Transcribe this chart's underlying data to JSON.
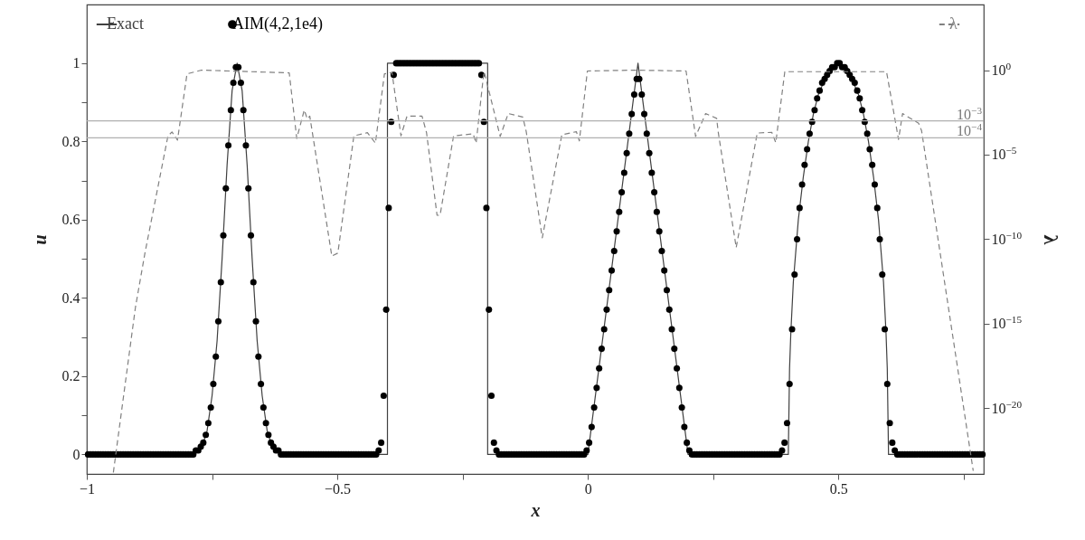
{
  "chart_data": {
    "type": "line",
    "xlabel": "x",
    "ylabel": "u",
    "y2label": "λ",
    "xlim": [
      -1,
      0.79
    ],
    "xticks": [
      {
        "value": -1,
        "label": "−1"
      },
      {
        "value": -0.75,
        "label": null
      },
      {
        "value": -0.5,
        "label": "−0.5"
      },
      {
        "value": -0.25,
        "label": null
      },
      0,
      {
        "value": 0.25,
        "label": null
      },
      0.5,
      {
        "value": 0.75,
        "label": null
      }
    ],
    "ylim": [
      -0.05,
      1.15
    ],
    "yticks": [
      0,
      {
        "value": 0.1,
        "label": null
      },
      0.2,
      {
        "value": 0.3,
        "label": null
      },
      0.4,
      {
        "value": 0.5,
        "label": null
      },
      0.6,
      {
        "value": 0.7,
        "label": null
      },
      0.8,
      {
        "value": 0.9,
        "label": null
      },
      1
    ],
    "y2lim": [
      1.3e-24,
      7600
    ],
    "y2ticks": [
      {
        "value": 1,
        "label": "10$^{0}$"
      },
      {
        "value": 1e-05,
        "label": "10$^{−5}$"
      },
      {
        "value": 1e-10,
        "label": "10$^{−10}$"
      },
      {
        "value": 1e-15,
        "label": "10$^{−15}$"
      },
      {
        "value": 1e-20,
        "label": "10$^{−20}$"
      }
    ],
    "log": "y2",
    "legend": "top",
    "ref_lines": [
      {
        "axis": "y2",
        "value": 0.001,
        "label": "10$^{−3}$",
        "color": "#b0b0b0"
      },
      {
        "axis": "y2",
        "value": 0.0001,
        "label": "10$^{−4}$",
        "color": "#b0b0b0"
      }
    ],
    "series": [
      {
        "name": "Exact",
        "color": "#404040",
        "line_style": "solid",
        "marker": "none",
        "x": [
          -1,
          -0.79,
          -0.78,
          -0.77,
          -0.76,
          -0.75,
          -0.74,
          -0.73,
          -0.72,
          -0.71,
          -0.7,
          -0.69,
          -0.68,
          -0.67,
          -0.66,
          -0.65,
          -0.64,
          -0.63,
          -0.62,
          -0.61,
          -0.4,
          -0.4,
          -0.2,
          -0.2,
          0,
          0.1,
          0.2,
          0.4,
          0.4025,
          0.405,
          0.41,
          0.42,
          0.43,
          0.44,
          0.45,
          0.46,
          0.47,
          0.48,
          0.49,
          0.5,
          0.51,
          0.52,
          0.53,
          0.54,
          0.55,
          0.56,
          0.57,
          0.58,
          0.59,
          0.595,
          0.5975,
          0.6,
          0.79
        ],
        "values": [
          0,
          0,
          0.01,
          0.02,
          0.06,
          0.15,
          0.29,
          0.5,
          0.74,
          0.93,
          1,
          0.93,
          0.74,
          0.5,
          0.29,
          0.15,
          0.06,
          0.02,
          0.01,
          0,
          0,
          1,
          1,
          0,
          0,
          1,
          0,
          0,
          0.22,
          0.31,
          0.44,
          0.6,
          0.71,
          0.8,
          0.87,
          0.92,
          0.95,
          0.98,
          0.99,
          1,
          0.99,
          0.98,
          0.95,
          0.92,
          0.87,
          0.8,
          0.71,
          0.6,
          0.44,
          0.31,
          0.22,
          0,
          0
        ]
      },
      {
        "name": "AIM(4,2,1e4)",
        "type": "scatter",
        "color": "#000000",
        "marker": "circle",
        "x": [
          -0.9975,
          -0.9925,
          -0.9875,
          -0.9825,
          -0.9775,
          -0.9725,
          -0.9675,
          -0.9625,
          -0.9575,
          -0.9525,
          -0.9475,
          -0.9425,
          -0.9375,
          -0.9325,
          -0.9275,
          -0.9225,
          -0.9175,
          -0.9125,
          -0.9075,
          -0.9025,
          -0.8975,
          -0.8925,
          -0.8875,
          -0.8825,
          -0.8775,
          -0.8725,
          -0.8675,
          -0.8625,
          -0.8575,
          -0.8525,
          -0.8475,
          -0.8425,
          -0.8375,
          -0.8325,
          -0.8275,
          -0.8225,
          -0.8175,
          -0.8125,
          -0.8075,
          -0.8025,
          -0.7975,
          -0.7925,
          -0.7875,
          -0.7825,
          -0.7775,
          -0.7725,
          -0.7675,
          -0.7625,
          -0.7575,
          -0.7525,
          -0.7475,
          -0.7425,
          -0.7375,
          -0.7325,
          -0.7275,
          -0.7225,
          -0.7175,
          -0.7125,
          -0.7075,
          -0.7025,
          -0.6975,
          -0.6925,
          -0.6875,
          -0.6825,
          -0.6775,
          -0.6725,
          -0.6675,
          -0.6625,
          -0.6575,
          -0.6525,
          -0.6475,
          -0.6425,
          -0.6375,
          -0.6325,
          -0.6275,
          -0.6225,
          -0.6175,
          -0.6125,
          -0.6075,
          -0.6025,
          -0.5975,
          -0.5925,
          -0.5875,
          -0.5825,
          -0.5775,
          -0.5725,
          -0.5675,
          -0.5625,
          -0.5575,
          -0.5525,
          -0.5475,
          -0.5425,
          -0.5375,
          -0.5325,
          -0.5275,
          -0.5225,
          -0.5175,
          -0.5125,
          -0.5075,
          -0.5025,
          -0.4975,
          -0.4925,
          -0.4875,
          -0.4825,
          -0.4775,
          -0.4725,
          -0.4675,
          -0.4625,
          -0.4575,
          -0.4525,
          -0.4475,
          -0.4425,
          -0.4375,
          -0.4325,
          -0.4275,
          -0.4225,
          -0.4175,
          -0.4125,
          -0.4075,
          -0.4025,
          -0.3975,
          -0.3925,
          -0.3875,
          -0.3825,
          -0.3775,
          -0.3725,
          -0.3675,
          -0.3625,
          -0.3575,
          -0.3525,
          -0.3475,
          -0.3425,
          -0.3375,
          -0.3325,
          -0.3275,
          -0.3225,
          -0.3175,
          -0.3125,
          -0.3075,
          -0.3025,
          -0.2975,
          -0.2925,
          -0.2875,
          -0.2825,
          -0.2775,
          -0.2725,
          -0.2675,
          -0.2625,
          -0.2575,
          -0.2525,
          -0.2475,
          -0.2425,
          -0.2375,
          -0.2325,
          -0.2275,
          -0.2225,
          -0.2175,
          -0.2125,
          -0.2075,
          -0.2025,
          -0.1975,
          -0.1925,
          -0.1875,
          -0.1825,
          -0.1775,
          -0.1725,
          -0.1675,
          -0.1625,
          -0.1575,
          -0.1525,
          -0.1475,
          -0.1425,
          -0.1375,
          -0.1325,
          -0.1275,
          -0.1225,
          -0.1175,
          -0.1125,
          -0.1075,
          -0.1025,
          -0.0975,
          -0.0925,
          -0.0875,
          -0.0825,
          -0.0775,
          -0.0725,
          -0.0675,
          -0.0625,
          -0.0575,
          -0.0525,
          -0.0475,
          -0.0425,
          -0.0375,
          -0.0325,
          -0.0275,
          -0.0225,
          -0.0175,
          -0.0125,
          -0.0075,
          -0.0025,
          0.0025,
          0.0075,
          0.0125,
          0.0175,
          0.0225,
          0.0275,
          0.0325,
          0.0375,
          0.0425,
          0.0475,
          0.0525,
          0.0575,
          0.0625,
          0.0675,
          0.0725,
          0.0775,
          0.0825,
          0.0875,
          0.0925,
          0.0975,
          0.1025,
          0.1075,
          0.1125,
          0.1175,
          0.1225,
          0.1275,
          0.1325,
          0.1375,
          0.1425,
          0.1475,
          0.1525,
          0.1575,
          0.1625,
          0.1675,
          0.1725,
          0.1775,
          0.1825,
          0.1875,
          0.1925,
          0.1975,
          0.2025,
          0.2075,
          0.2125,
          0.2175,
          0.2225,
          0.2275,
          0.2325,
          0.2375,
          0.2425,
          0.2475,
          0.2525,
          0.2575,
          0.2625,
          0.2675,
          0.2725,
          0.2775,
          0.2825,
          0.2875,
          0.2925,
          0.2975,
          0.3025,
          0.3075,
          0.3125,
          0.3175,
          0.3225,
          0.3275,
          0.3325,
          0.3375,
          0.3425,
          0.3475,
          0.3525,
          0.3575,
          0.3625,
          0.3675,
          0.3725,
          0.3775,
          0.3825,
          0.3875,
          0.3925,
          0.3975,
          0.4025,
          0.4075,
          0.4125,
          0.4175,
          0.4225,
          0.4275,
          0.4325,
          0.4375,
          0.4425,
          0.4475,
          0.4525,
          0.4575,
          0.4625,
          0.4675,
          0.4725,
          0.4775,
          0.4825,
          0.4875,
          0.4925,
          0.4975,
          0.5025,
          0.5075,
          0.5125,
          0.5175,
          0.5225,
          0.5275,
          0.5325,
          0.5375,
          0.5425,
          0.5475,
          0.5525,
          0.5575,
          0.5625,
          0.5675,
          0.5725,
          0.5775,
          0.5825,
          0.5875,
          0.5925,
          0.5975,
          0.6025,
          0.6075,
          0.6125,
          0.6175,
          0.6225,
          0.6275,
          0.6325,
          0.6375,
          0.6425,
          0.6475,
          0.6525,
          0.6575,
          0.6625,
          0.6675,
          0.6725,
          0.6775,
          0.6825,
          0.6875,
          0.6925,
          0.6975,
          0.7025,
          0.7075,
          0.7125,
          0.7175,
          0.7225,
          0.7275,
          0.7325,
          0.7375,
          0.7425,
          0.7475,
          0.7525,
          0.7575,
          0.7625,
          0.7675,
          0.7725,
          0.7775,
          0.7825,
          0.7875
        ],
        "values": [
          0,
          0,
          0,
          0,
          0,
          0,
          0,
          0,
          0,
          0,
          0,
          0,
          0,
          0,
          0,
          0,
          0,
          0,
          0,
          0,
          0,
          0,
          0,
          0,
          0,
          0,
          0,
          0,
          0,
          0,
          0,
          0,
          0,
          0,
          0,
          0,
          0,
          0,
          0,
          0,
          0,
          0,
          0,
          0.01,
          0.01,
          0.02,
          0.03,
          0.05,
          0.08,
          0.12,
          0.18,
          0.25,
          0.34,
          0.44,
          0.56,
          0.68,
          0.79,
          0.88,
          0.95,
          0.99,
          0.99,
          0.95,
          0.88,
          0.79,
          0.68,
          0.56,
          0.44,
          0.34,
          0.25,
          0.18,
          0.12,
          0.08,
          0.05,
          0.03,
          0.02,
          0.01,
          0.01,
          0,
          0,
          0,
          0,
          0,
          0,
          0,
          0,
          0,
          0,
          0,
          0,
          0,
          0,
          0,
          0,
          0,
          0,
          0,
          0,
          0,
          0,
          0,
          0,
          0,
          0,
          0,
          0,
          0,
          0,
          0,
          0,
          0,
          0,
          0,
          0,
          0,
          0,
          0,
          0.01,
          0.03,
          0.15,
          0.37,
          0.63,
          0.85,
          0.97,
          1,
          1,
          1,
          1,
          1,
          1,
          1,
          1,
          1,
          1,
          1,
          1,
          1,
          1,
          1,
          1,
          1,
          1,
          1,
          1,
          1,
          1,
          1,
          1,
          1,
          1,
          1,
          1,
          1,
          1,
          1,
          1,
          1,
          1,
          0.97,
          0.85,
          0.63,
          0.37,
          0.15,
          0.03,
          0.01,
          0,
          0,
          0,
          0,
          0,
          0,
          0,
          0,
          0,
          0,
          0,
          0,
          0,
          0,
          0,
          0,
          0,
          0,
          0,
          0,
          0,
          0,
          0,
          0,
          0,
          0,
          0,
          0,
          0,
          0,
          0,
          0,
          0,
          0,
          0,
          0.01,
          0.03,
          0.07,
          0.12,
          0.17,
          0.22,
          0.27,
          0.32,
          0.37,
          0.42,
          0.47,
          0.52,
          0.57,
          0.62,
          0.67,
          0.72,
          0.77,
          0.82,
          0.87,
          0.92,
          0.96,
          0.96,
          0.92,
          0.87,
          0.82,
          0.77,
          0.72,
          0.67,
          0.62,
          0.57,
          0.52,
          0.47,
          0.42,
          0.37,
          0.32,
          0.27,
          0.22,
          0.17,
          0.12,
          0.07,
          0.03,
          0.01,
          0,
          0,
          0,
          0,
          0,
          0,
          0,
          0,
          0,
          0,
          0,
          0,
          0,
          0,
          0,
          0,
          0,
          0,
          0,
          0,
          0,
          0,
          0,
          0,
          0,
          0,
          0,
          0,
          0,
          0,
          0,
          0,
          0,
          0,
          0,
          0,
          0.01,
          0.03,
          0.08,
          0.18,
          0.32,
          0.46,
          0.55,
          0.63,
          0.69,
          0.74,
          0.78,
          0.82,
          0.85,
          0.88,
          0.91,
          0.93,
          0.95,
          0.96,
          0.97,
          0.98,
          0.99,
          0.99,
          1,
          1,
          0.99,
          0.99,
          0.98,
          0.97,
          0.96,
          0.95,
          0.93,
          0.91,
          0.88,
          0.85,
          0.82,
          0.78,
          0.74,
          0.69,
          0.63,
          0.55,
          0.46,
          0.32,
          0.18,
          0.08,
          0.03,
          0.01,
          0,
          0,
          0,
          0,
          0,
          0,
          0,
          0,
          0,
          0,
          0,
          0,
          0,
          0,
          0,
          0,
          0,
          0,
          0,
          0,
          0,
          0,
          0,
          0,
          0,
          0,
          0,
          0,
          0,
          0,
          0,
          0,
          0,
          0,
          0
        ]
      },
      {
        "name": "λ",
        "axis": "y2",
        "color": "#808080",
        "line_style": "dashed",
        "marker": "none",
        "x": [
          -0.947,
          -0.903,
          -0.884,
          -0.838,
          -0.83,
          -0.819,
          -0.8,
          -0.771,
          -0.596,
          -0.581,
          -0.566,
          -0.56,
          -0.555,
          -0.511,
          -0.499,
          -0.467,
          -0.44,
          -0.424,
          -0.406,
          -0.391,
          -0.373,
          -0.361,
          -0.331,
          -0.322,
          -0.301,
          -0.295,
          -0.268,
          -0.229,
          -0.223,
          -0.208,
          -0.207,
          -0.175,
          -0.159,
          -0.13,
          -0.123,
          -0.091,
          -0.052,
          -0.023,
          -0.017,
          -0.001,
          0.093,
          0.196,
          0.215,
          0.235,
          0.257,
          0.26,
          0.296,
          0.338,
          0.367,
          0.375,
          0.393,
          0.492,
          0.596,
          0.62,
          0.628,
          0.66,
          0.666,
          0.769
        ],
        "values": [
          1.6e-24,
          9.1e-15,
          1.5e-11,
          0.00013,
          0.00022,
          7.2e-05,
          0.6,
          1,
          0.69,
          9.1e-05,
          0.0044,
          0.0013,
          0.0019,
          1e-11,
          1.5e-11,
          0.00013,
          0.0002,
          4.8e-05,
          0.6,
          0.74,
          0.00013,
          0.0019,
          0.0019,
          0.0002,
          2.6e-09,
          2.6e-09,
          0.00013,
          0.00017,
          4.8e-05,
          0.6,
          0.81,
          0.00012,
          0.0027,
          0.0017,
          0.00023,
          1.2e-10,
          0.00015,
          0.00023,
          6.5e-05,
          0.89,
          1,
          0.89,
          0.00012,
          0.0027,
          0.0014,
          0.00023,
          3.2e-11,
          0.00019,
          0.00021,
          5.1e-05,
          0.81,
          0.81,
          0.81,
          7.9e-05,
          0.0027,
          0.00072,
          0.00026,
          2e-24
        ]
      }
    ]
  }
}
